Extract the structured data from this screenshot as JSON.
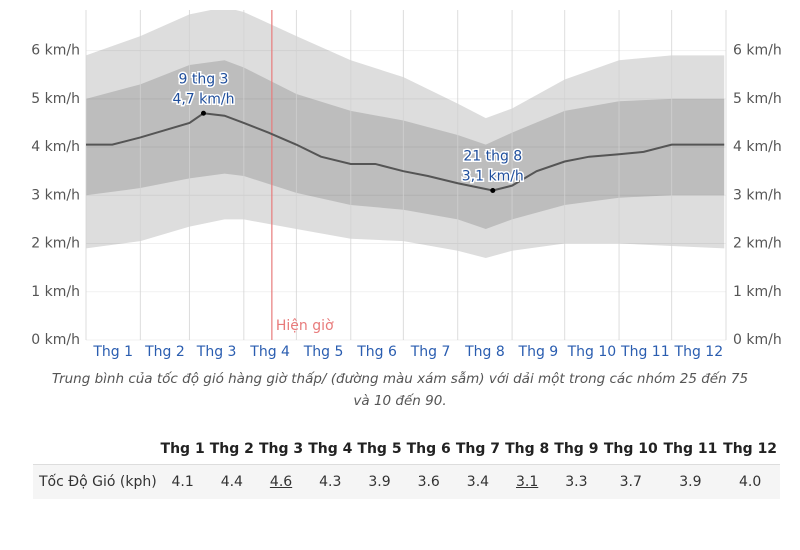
{
  "chart_data": {
    "type": "band-line",
    "xlim": [
      1,
      366
    ],
    "xticks": [
      1,
      32,
      60,
      91,
      121,
      152,
      182,
      213,
      244,
      274,
      305,
      335,
      366
    ],
    "categories": [
      "Thg 1",
      "Thg 2",
      "Thg 3",
      "Thg 4",
      "Thg 5",
      "Thg 6",
      "Thg 7",
      "Thg 8",
      "Thg 9",
      "Thg 10",
      "Thg 11",
      "Thg 12"
    ],
    "ylim": [
      0,
      6.8
    ],
    "yticks": [
      {
        "value": 0,
        "label": "0 km/h"
      },
      {
        "value": 1,
        "label": "1 km/h"
      },
      {
        "value": 2,
        "label": "2 km/h"
      },
      {
        "value": 3,
        "label": "3 km/h"
      },
      {
        "value": 4,
        "label": "4 km/h"
      },
      {
        "value": 5,
        "label": "5 km/h"
      },
      {
        "value": 6,
        "label": "6 km/h"
      }
    ],
    "grid": true,
    "bands": [
      {
        "color": "#dddddd",
        "x": [
          1,
          32,
          60,
          80,
          91,
          121,
          152,
          182,
          213,
          229,
          244,
          274,
          305,
          335,
          365
        ],
        "lower": [
          1.9,
          2.05,
          2.35,
          2.5,
          2.5,
          2.3,
          2.1,
          2.05,
          1.85,
          1.7,
          1.85,
          2.0,
          2.0,
          1.95,
          1.9
        ],
        "upper": [
          5.9,
          6.3,
          6.75,
          6.9,
          6.8,
          6.3,
          5.8,
          5.45,
          4.9,
          4.6,
          4.8,
          5.4,
          5.8,
          5.9,
          5.9
        ]
      },
      {
        "color": "#bdbdbd",
        "x": [
          1,
          32,
          60,
          80,
          91,
          121,
          152,
          182,
          213,
          229,
          244,
          274,
          305,
          335,
          365
        ],
        "lower": [
          3.0,
          3.15,
          3.35,
          3.45,
          3.4,
          3.05,
          2.8,
          2.7,
          2.5,
          2.3,
          2.5,
          2.8,
          2.95,
          3.0,
          3.0
        ],
        "upper": [
          5.0,
          5.3,
          5.7,
          5.8,
          5.65,
          5.1,
          4.75,
          4.55,
          4.25,
          4.05,
          4.3,
          4.75,
          4.95,
          5.0,
          5.0
        ]
      }
    ],
    "series": [
      {
        "color": "#555555",
        "x": [
          1,
          16,
          32,
          46,
          60,
          68,
          80,
          91,
          105,
          121,
          135,
          152,
          166,
          182,
          196,
          213,
          233,
          244,
          258,
          274,
          288,
          305,
          319,
          335,
          349,
          365
        ],
        "values": [
          4.05,
          4.05,
          4.2,
          4.35,
          4.5,
          4.7,
          4.65,
          4.5,
          4.3,
          4.05,
          3.8,
          3.65,
          3.65,
          3.5,
          3.4,
          3.25,
          3.1,
          3.2,
          3.5,
          3.7,
          3.8,
          3.85,
          3.9,
          4.05,
          4.05,
          4.05
        ]
      }
    ],
    "annotations": [
      {
        "x": 68,
        "y": 4.7,
        "date": "9 thg 3",
        "label": "4,7 km/h"
      },
      {
        "x": 233,
        "y": 3.1,
        "date": "21 thg 8",
        "label": "3,1 km/h"
      }
    ],
    "now": {
      "x": 107,
      "label": "Hiện giờ",
      "color": "#e87b7b"
    },
    "caption": "Trung bình của tốc độ gió hàng giờ thấp/ (đường màu xám sẫm) với dải một trong các nhóm 25 đến 75 và 10 đến 90."
  },
  "table": {
    "columns": [
      "Thg 1",
      "Thg 2",
      "Thg 3",
      "Thg 4",
      "Thg 5",
      "Thg 6",
      "Thg 7",
      "Thg 8",
      "Thg 9",
      "Thg 10",
      "Thg 11",
      "Thg 12"
    ],
    "row_label": "Tốc Độ Gió (kph)",
    "values": [
      "4.1",
      "4.4",
      "4.6",
      "4.3",
      "3.9",
      "3.6",
      "3.4",
      "3.1",
      "3.3",
      "3.7",
      "3.9",
      "4.0"
    ]
  }
}
